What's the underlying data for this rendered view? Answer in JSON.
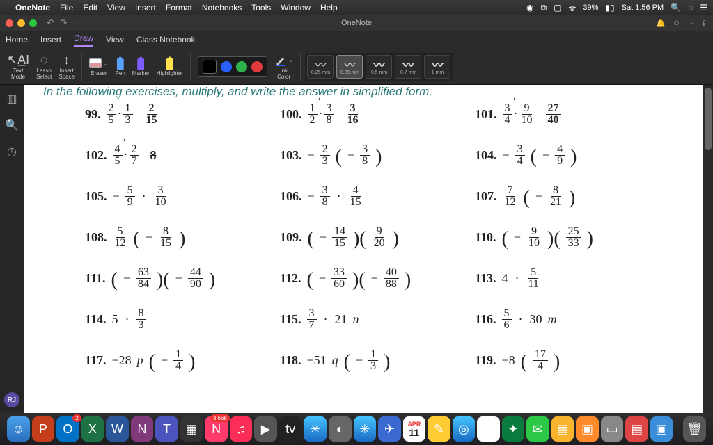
{
  "menubar": {
    "app": "OneNote",
    "items": [
      "File",
      "Edit",
      "View",
      "Insert",
      "Format",
      "Notebooks",
      "Tools",
      "Window",
      "Help"
    ],
    "battery": "39%",
    "clock": "Sat 1:56 PM"
  },
  "titlebar": {
    "title": "OneNote"
  },
  "tabs": {
    "items": [
      "Home",
      "Insert",
      "Draw",
      "View",
      "Class Notebook"
    ],
    "active": "Draw"
  },
  "ribbon": {
    "text_mode": "Text\nMode",
    "lasso": "Lasso\nSelect",
    "insert_space": "Insert\nSpace",
    "eraser": "Eraser",
    "pen": "Pen",
    "marker": "Marker",
    "highlighter": "Highlighter",
    "ink_color": "Ink\nColor",
    "strokes": [
      {
        "label": "0.25 mm"
      },
      {
        "label": "0.35 mm"
      },
      {
        "label": "0.5 mm"
      },
      {
        "label": "0.7 mm"
      },
      {
        "label": "1 mm"
      }
    ],
    "active_stroke": 1
  },
  "canvas": {
    "instruction": "In the following exercises, multiply, and write the answer in simplified form.",
    "hand_99": "2",
    "hand_99b_n": "2",
    "hand_99b_d": "15",
    "hand_100_n": "3",
    "hand_100_d": "16",
    "hand_101_n": "27",
    "hand_101_d": "40",
    "hand_102": "8"
  },
  "avatar": "RJ",
  "dock": {
    "badges": {
      "outlook": "2",
      "news": "3,668"
    },
    "cal_day": "APR",
    "cal_num": "11"
  }
}
